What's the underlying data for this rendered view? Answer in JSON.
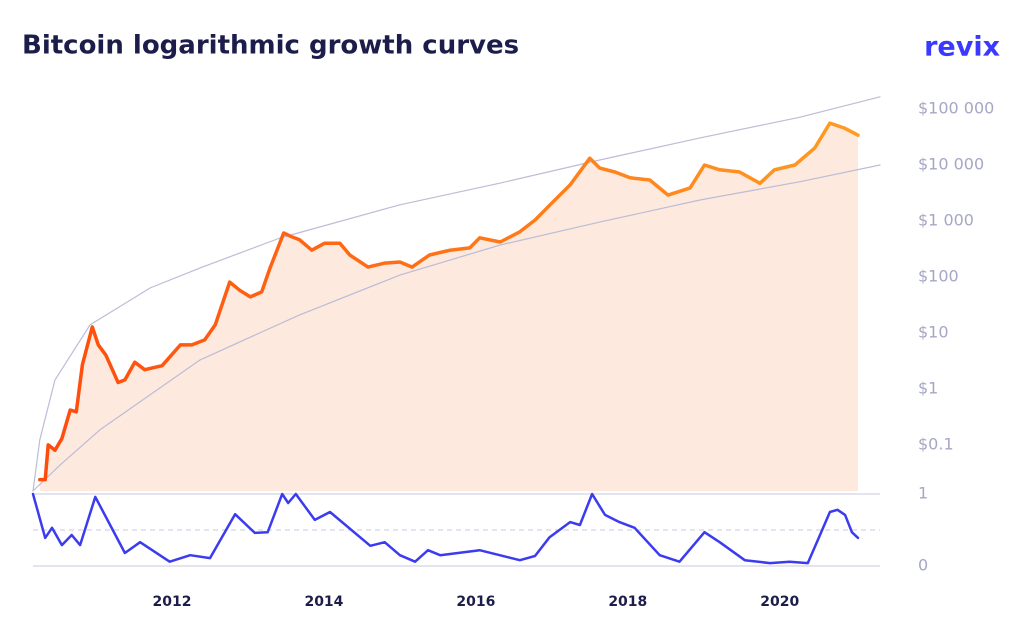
{
  "brand": "revix",
  "chart_data": [
    {
      "type": "line",
      "title": "Bitcoin logarithmic growth curves",
      "yscale": "log",
      "xlim": [
        2010.17,
        2021.32
      ],
      "ylim": [
        0.015,
        180000
      ],
      "yticks": [
        {
          "value": 0.1,
          "label": "$0.1"
        },
        {
          "value": 1,
          "label": "$1"
        },
        {
          "value": 10,
          "label": "$10"
        },
        {
          "value": 100,
          "label": "$100"
        },
        {
          "value": 1000,
          "label": "$1 000"
        },
        {
          "value": 10000,
          "label": "$10 000"
        },
        {
          "value": 100000,
          "label": "$100 000"
        }
      ],
      "area_color": "#fde9dd",
      "series": [
        {
          "color": "#bcbcd8",
          "width": 1.2,
          "x": [
            2010.17,
            2010.26,
            2010.46,
            2010.92,
            2011.71,
            2012.37,
            2013.42,
            2015.0,
            2016.32,
            2017.63,
            2018.95,
            2020.26,
            2021.32
          ],
          "values": [
            0.015,
            0.123,
            1.45,
            13.9,
            63.5,
            145,
            496,
            1940,
            4745,
            12280,
            30500,
            71000,
            165000
          ]
        },
        {
          "color": "#bcbcd8",
          "width": 1.2,
          "x": [
            2010.17,
            2010.53,
            2011.05,
            2012.37,
            2013.68,
            2015.0,
            2016.32,
            2017.63,
            2018.95,
            2020.26,
            2021.32
          ],
          "values": [
            0.015,
            0.044,
            0.185,
            3.3,
            21,
            108,
            372,
            955,
            2370,
            5000,
            10000
          ]
        },
        {
          "color": "#ff4a0c",
          "color_end": "#ff9e22",
          "width": 3.5,
          "fill": true,
          "x": [
            2010.26,
            2010.33,
            2010.37,
            2010.46,
            2010.55,
            2010.66,
            2010.74,
            2010.82,
            2010.95,
            2011.03,
            2011.13,
            2011.29,
            2011.38,
            2011.51,
            2011.64,
            2011.87,
            2012.11,
            2012.26,
            2012.43,
            2012.57,
            2012.76,
            2012.89,
            2013.03,
            2013.18,
            2013.29,
            2013.47,
            2013.58,
            2013.68,
            2013.84,
            2014.01,
            2014.21,
            2014.34,
            2014.58,
            2014.8,
            2015.0,
            2015.16,
            2015.39,
            2015.66,
            2015.92,
            2016.05,
            2016.32,
            2016.58,
            2016.78,
            2016.97,
            2017.24,
            2017.5,
            2017.63,
            2017.83,
            2018.03,
            2018.29,
            2018.53,
            2018.82,
            2019.01,
            2019.21,
            2019.47,
            2019.74,
            2019.93,
            2020.2,
            2020.46,
            2020.66,
            2020.86,
            2021.03
          ],
          "values": [
            0.024,
            0.024,
            0.1,
            0.08,
            0.13,
            0.42,
            0.39,
            2.7,
            12.8,
            6.1,
            4.0,
            1.3,
            1.45,
            3.0,
            2.2,
            2.6,
            6.1,
            6.1,
            7.5,
            14,
            81,
            58,
            44,
            54,
            144,
            610,
            520,
            460,
            300,
            400,
            400,
            246,
            150,
            177,
            185,
            150,
            246,
            300,
            330,
            500,
            420,
            640,
            1040,
            1900,
            4400,
            13200,
            8800,
            7500,
            5900,
            5400,
            2900,
            3900,
            10000,
            8200,
            7500,
            4700,
            8200,
            10000,
            20000,
            56000,
            45000,
            34000
          ]
        }
      ]
    },
    {
      "type": "line",
      "xlim": [
        2010.17,
        2021.32
      ],
      "ylim": [
        0,
        1
      ],
      "yticks": [
        0,
        1
      ],
      "grid": true,
      "ref_line": 0.5,
      "xticks": [
        2012,
        2014,
        2016,
        2018,
        2020
      ],
      "series": [
        {
          "color": "#3b3bf0",
          "width": 2.5,
          "x": [
            2010.17,
            2010.33,
            2010.42,
            2010.55,
            2010.68,
            2010.79,
            2010.99,
            2011.38,
            2011.58,
            2011.97,
            2012.24,
            2012.5,
            2012.83,
            2013.09,
            2013.26,
            2013.45,
            2013.53,
            2013.63,
            2013.88,
            2014.08,
            2014.61,
            2014.8,
            2015.0,
            2015.2,
            2015.37,
            2015.53,
            2016.05,
            2016.58,
            2016.78,
            2016.97,
            2017.24,
            2017.37,
            2017.53,
            2017.7,
            2017.89,
            2018.09,
            2018.42,
            2018.68,
            2019.01,
            2019.21,
            2019.54,
            2019.87,
            2020.13,
            2020.37,
            2020.53,
            2020.66,
            2020.76,
            2020.86,
            2020.95,
            2021.03
          ],
          "values": [
            1.0,
            0.39,
            0.53,
            0.29,
            0.43,
            0.29,
            0.96,
            0.18,
            0.33,
            0.06,
            0.15,
            0.11,
            0.72,
            0.46,
            0.47,
            1.0,
            0.875,
            1.0,
            0.64,
            0.75,
            0.28,
            0.33,
            0.15,
            0.06,
            0.22,
            0.15,
            0.22,
            0.08,
            0.14,
            0.4,
            0.61,
            0.57,
            1.0,
            0.71,
            0.61,
            0.53,
            0.15,
            0.06,
            0.47,
            0.33,
            0.08,
            0.04,
            0.06,
            0.04,
            0.43,
            0.75,
            0.78,
            0.71,
            0.47,
            0.39
          ]
        }
      ]
    }
  ]
}
